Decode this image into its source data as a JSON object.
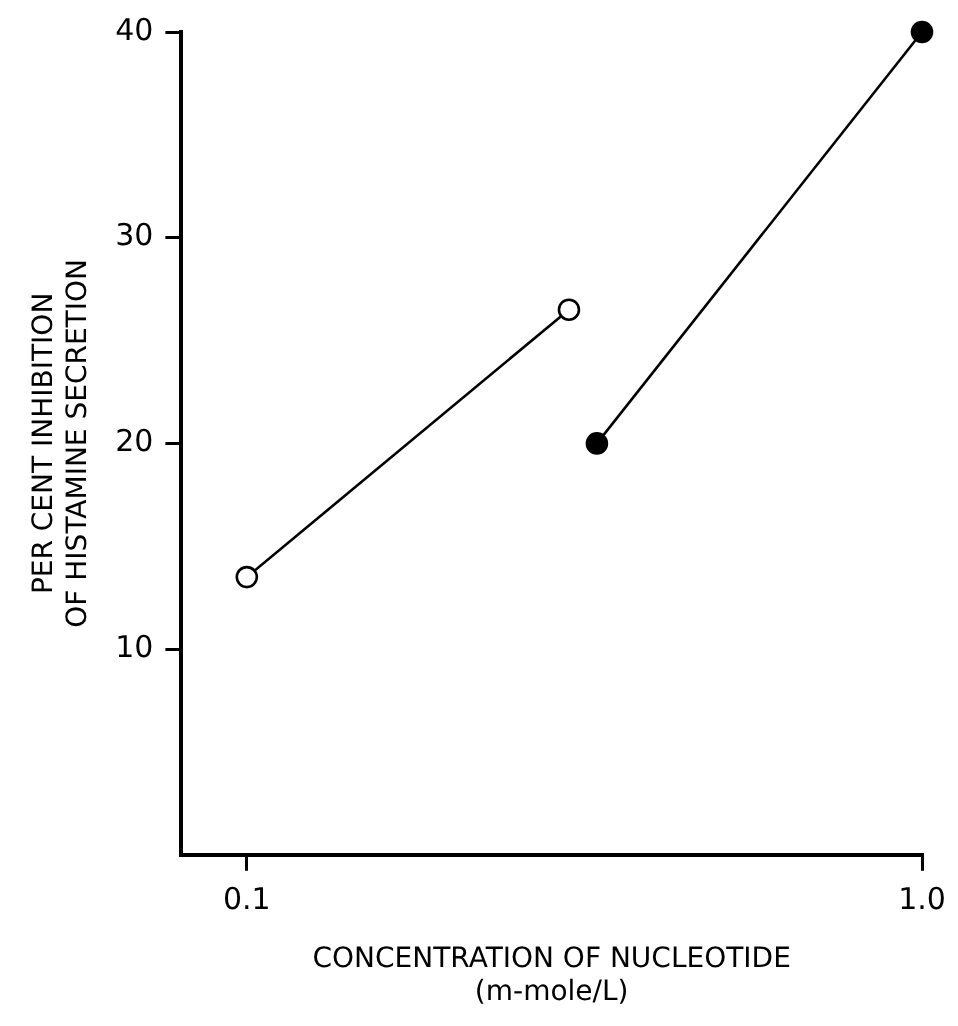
{
  "chart_data": {
    "type": "line",
    "xlabel": "CONCENTRATION OF NUCLEOTIDE\n(m-mole/L)",
    "ylabel": "PER CENT INHIBITION\nOF HISTAMINE SECRETION",
    "series": [
      {
        "color": "#000000",
        "x": [
          0.1,
          0.3
        ],
        "values": [
          13.5,
          26.5
        ]
      },
      {
        "color": "#000000",
        "x": [
          0.33,
          1.0
        ],
        "values": [
          20,
          40
        ]
      }
    ],
    "log": "x",
    "xlim": [
      0.08,
      1.0
    ],
    "xticks": [
      0.1,
      {
        "value": 1,
        "label": "1.0"
      }
    ],
    "ylim": [
      0,
      40
    ],
    "yticks": [
      10,
      20,
      30,
      40
    ],
    "marker": "circle",
    "grid": false,
    "legend": false
  }
}
